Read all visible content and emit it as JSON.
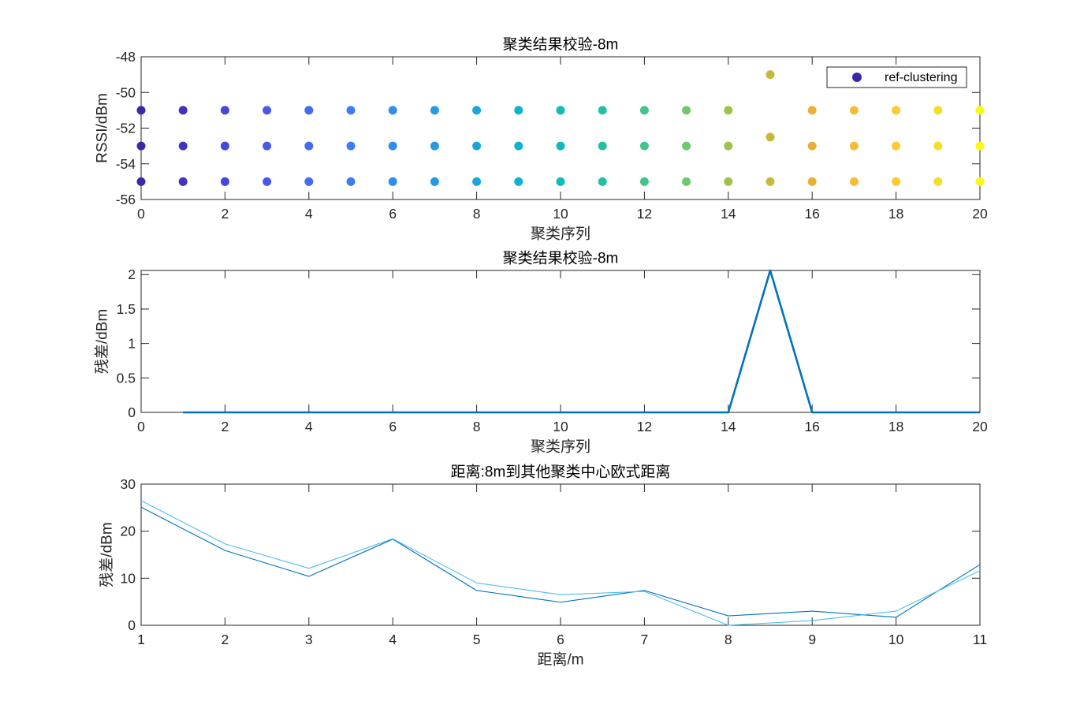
{
  "chart_data": [
    {
      "type": "scatter",
      "title": "聚类结果校验-8m",
      "xlabel": "聚类序列",
      "ylabel": "RSSI/dBm",
      "xlim": [
        0,
        20
      ],
      "ylim": [
        -56,
        -48
      ],
      "xticks": [
        0,
        2,
        4,
        6,
        8,
        10,
        12,
        14,
        16,
        18,
        20
      ],
      "yticks": [
        -56,
        -54,
        -52,
        -50,
        -48
      ],
      "grid": false,
      "axis_color": "#262626",
      "legend": {
        "location": "top-right",
        "marker_color": "#3e26a8"
      },
      "series": [
        {
          "name": "ref-clustering",
          "x": [
            0,
            1,
            2,
            3,
            4,
            5,
            6,
            7,
            8,
            9,
            10,
            11,
            12,
            13,
            14,
            15,
            16,
            17,
            18,
            19,
            20
          ],
          "y": [
            [
              -51,
              -53,
              -55
            ],
            [
              -51,
              -53,
              -55
            ],
            [
              -51,
              -53,
              -55
            ],
            [
              -51,
              -53,
              -55
            ],
            [
              -51,
              -53,
              -55
            ],
            [
              -51,
              -53,
              -55
            ],
            [
              -51,
              -53,
              -55
            ],
            [
              -51,
              -53,
              -55
            ],
            [
              -51,
              -53,
              -55
            ],
            [
              -51,
              -53,
              -55
            ],
            [
              -51,
              -53,
              -55
            ],
            [
              -51,
              -53,
              -55
            ],
            [
              -51,
              -53,
              -55
            ],
            [
              -51,
              -53,
              -55
            ],
            [
              -51,
              -53,
              -55
            ],
            [
              -49,
              -52.5,
              -55
            ],
            [
              -51,
              -53,
              -55
            ],
            [
              -51,
              -53,
              -55
            ],
            [
              -51,
              -53,
              -55
            ],
            [
              -51,
              -53,
              -55
            ],
            [
              -51,
              -53,
              -55
            ]
          ],
          "colors": [
            "#3e26a8",
            "#4232bf",
            "#4646d8",
            "#4758ea",
            "#436bf3",
            "#3c7df5",
            "#2e8ded",
            "#239ae3",
            "#1ba6da",
            "#0fb2d0",
            "#11bab9",
            "#25bfa3",
            "#41c58b",
            "#6fc86b",
            "#9cc44b",
            "#c7b83a",
            "#e9b038",
            "#f8bb38",
            "#fdca2f",
            "#f5de27",
            "#f9fa14"
          ]
        }
      ]
    },
    {
      "type": "line",
      "title": "聚类结果校验-8m",
      "xlabel": "聚类序列",
      "ylabel": "残差/dBm",
      "xlim": [
        0,
        20
      ],
      "ylim": [
        0,
        2.06
      ],
      "xticks": [
        0,
        2,
        4,
        6,
        8,
        10,
        12,
        14,
        16,
        18,
        20
      ],
      "yticks": [
        0,
        0.5,
        1,
        1.5,
        2
      ],
      "grid": false,
      "axis_color": "#262626",
      "series": [
        {
          "x": [
            1,
            2,
            3,
            4,
            5,
            6,
            7,
            8,
            9,
            10,
            11,
            12,
            13,
            14,
            15,
            16,
            17,
            18,
            19,
            20
          ],
          "values": [
            0,
            0,
            0,
            0,
            0,
            0,
            0,
            0,
            0,
            0,
            0,
            0,
            0,
            0,
            2.06,
            0,
            0,
            0,
            0,
            0
          ],
          "color": "#0072bd"
        }
      ]
    },
    {
      "type": "line",
      "title": "距离:8m到其他聚类中心欧式距离",
      "xlabel": "距离/m",
      "ylabel": "残差/dBm",
      "xlim": [
        1,
        11
      ],
      "ylim": [
        0,
        30
      ],
      "xticks": [
        1,
        2,
        3,
        4,
        5,
        6,
        7,
        8,
        9,
        10,
        11
      ],
      "yticks": [
        0,
        10,
        20,
        30
      ],
      "grid": false,
      "axis_color": "#262626",
      "series": [
        {
          "x": [
            1,
            2,
            3,
            4,
            5,
            6,
            7,
            8,
            9,
            10,
            11
          ],
          "values": [
            25.1,
            15.9,
            10.4,
            18.3,
            7.4,
            4.9,
            7.4,
            2.0,
            3.0,
            1.7,
            12.9
          ],
          "color": "#0072bd"
        },
        {
          "x": [
            1,
            2,
            3,
            4,
            5,
            6,
            7,
            8,
            9,
            10,
            11
          ],
          "values": [
            26.5,
            17.3,
            12.1,
            18.4,
            9.0,
            6.5,
            7.2,
            0,
            1.0,
            3.0,
            11.6
          ],
          "color": "#4dbeee"
        }
      ]
    }
  ]
}
